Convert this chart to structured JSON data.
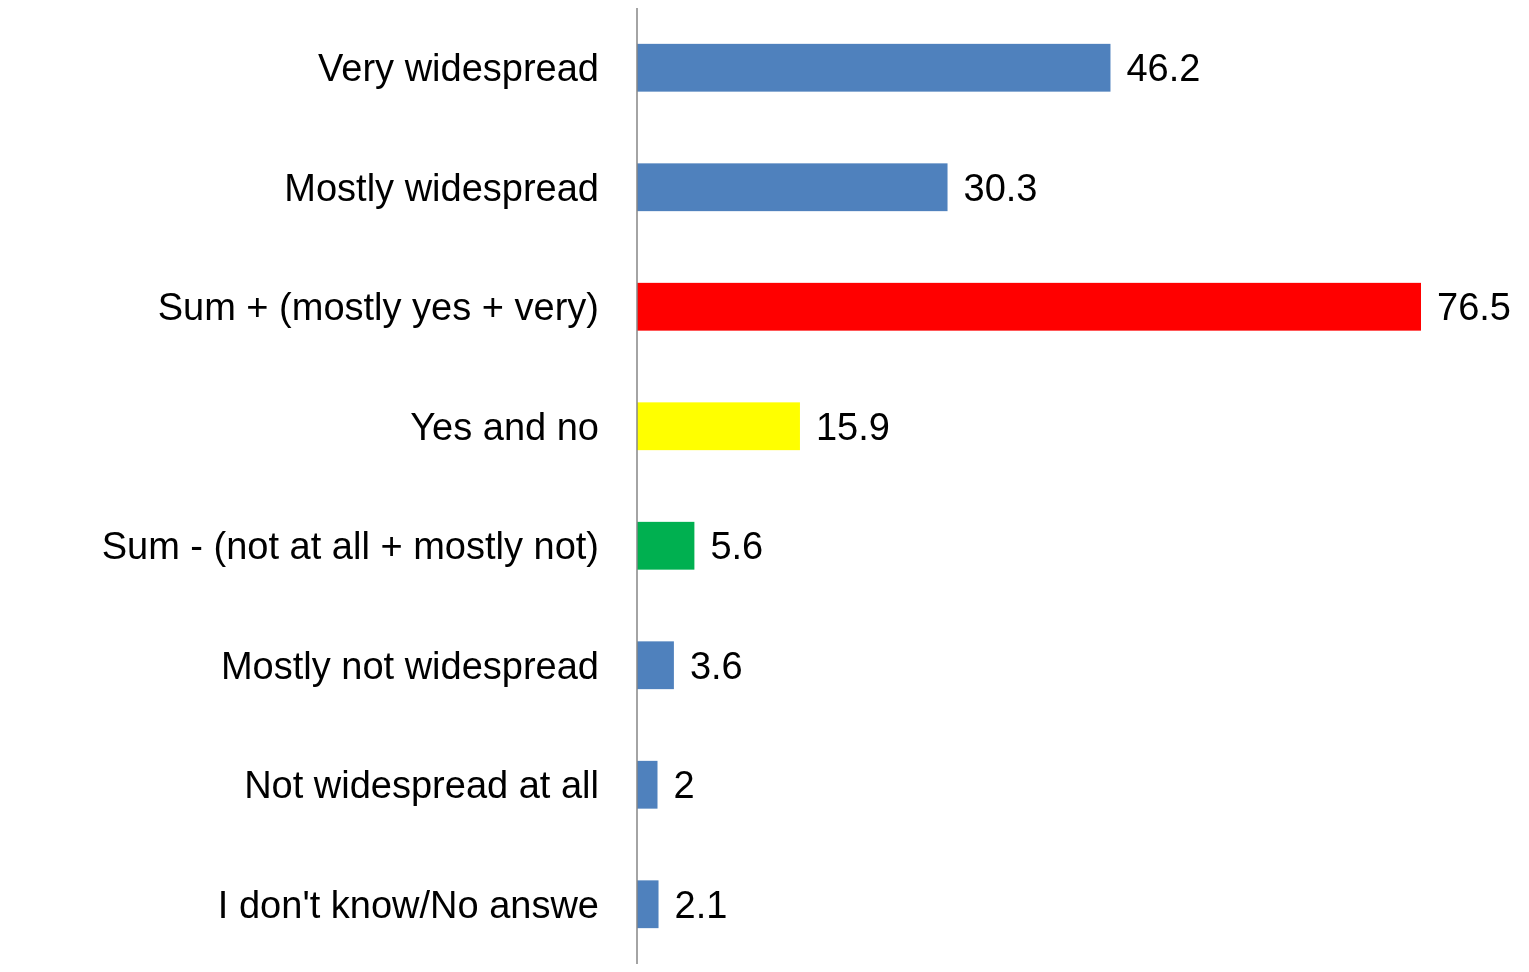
{
  "chart_data": {
    "type": "bar",
    "orientation": "horizontal",
    "data_labels": true,
    "categories": [
      "Very widespread",
      "Mostly widespread",
      "Sum + (mostly yes + very)",
      "Yes and no",
      "Sum - (not at all + mostly not)",
      "Mostly not widespread",
      "Not widespread at all",
      "I don't know/No answe"
    ],
    "values": [
      46.2,
      30.3,
      76.5,
      15.9,
      5.6,
      3.6,
      2,
      2.1
    ],
    "colors": [
      "#4f81bd",
      "#4f81bd",
      "#ff0000",
      "#ffff00",
      "#00b050",
      "#4f81bd",
      "#4f81bd",
      "#4f81bd"
    ]
  }
}
